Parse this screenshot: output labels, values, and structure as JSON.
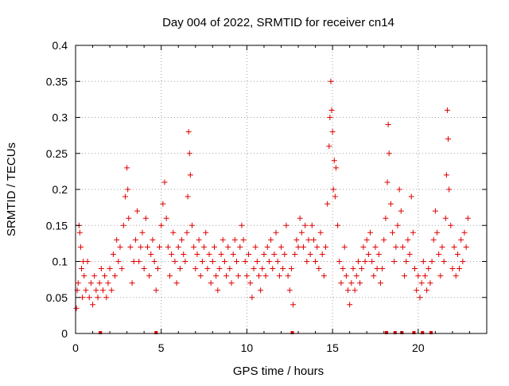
{
  "chart_data": {
    "type": "scatter",
    "title": "Day 004 of 2022, SRMTID for receiver cn14",
    "xlabel": "GPS time / hours",
    "ylabel": "SRMTID / TECUs",
    "xlim": [
      0,
      24
    ],
    "ylim": [
      0,
      0.4
    ],
    "xticks": [
      0,
      5,
      10,
      15,
      20
    ],
    "xtick_labels": [
      "0",
      "5",
      "10",
      "15",
      "20"
    ],
    "yticks": [
      0,
      0.05,
      0.1,
      0.15,
      0.2,
      0.25,
      0.3,
      0.35,
      0.4
    ],
    "ytick_labels": [
      "0",
      "0.05",
      "0.1",
      "0.15",
      "0.2",
      "0.25",
      "0.3",
      "0.35",
      "0.4"
    ],
    "grid": true,
    "marker": "plus",
    "color": "#e00000",
    "series": [
      {
        "name": "SRMTID",
        "points": [
          [
            0.05,
            0.035
          ],
          [
            0.1,
            0.06
          ],
          [
            0.15,
            0.07
          ],
          [
            0.2,
            0.15
          ],
          [
            0.25,
            0.14
          ],
          [
            0.3,
            0.12
          ],
          [
            0.35,
            0.09
          ],
          [
            0.4,
            0.05
          ],
          [
            0.45,
            0.1
          ],
          [
            0.5,
            0.08
          ],
          [
            0.6,
            0.06
          ],
          [
            0.7,
            0.1
          ],
          [
            0.8,
            0.05
          ],
          [
            0.9,
            0.07
          ],
          [
            1.0,
            0.04
          ],
          [
            1.1,
            0.08
          ],
          [
            1.2,
            0.06
          ],
          [
            1.3,
            0.05
          ],
          [
            1.4,
            0.07
          ],
          [
            1.5,
            0.09
          ],
          [
            1.6,
            0.06
          ],
          [
            1.7,
            0.08
          ],
          [
            1.8,
            0.05
          ],
          [
            1.9,
            0.07
          ],
          [
            2.0,
            0.09
          ],
          [
            2.1,
            0.06
          ],
          [
            2.2,
            0.11
          ],
          [
            2.3,
            0.08
          ],
          [
            2.4,
            0.13
          ],
          [
            2.5,
            0.1
          ],
          [
            2.6,
            0.12
          ],
          [
            2.7,
            0.09
          ],
          [
            2.8,
            0.15
          ],
          [
            2.9,
            0.19
          ],
          [
            3.0,
            0.23
          ],
          [
            3.05,
            0.2
          ],
          [
            3.1,
            0.16
          ],
          [
            3.2,
            0.12
          ],
          [
            3.3,
            0.07
          ],
          [
            3.4,
            0.1
          ],
          [
            3.5,
            0.13
          ],
          [
            3.6,
            0.17
          ],
          [
            3.7,
            0.1
          ],
          [
            3.8,
            0.12
          ],
          [
            3.9,
            0.14
          ],
          [
            4.0,
            0.09
          ],
          [
            4.1,
            0.16
          ],
          [
            4.2,
            0.12
          ],
          [
            4.3,
            0.08
          ],
          [
            4.4,
            0.11
          ],
          [
            4.5,
            0.13
          ],
          [
            4.6,
            0.1
          ],
          [
            4.7,
            0.06
          ],
          [
            4.8,
            0.09
          ],
          [
            4.9,
            0.12
          ],
          [
            5.0,
            0.15
          ],
          [
            5.1,
            0.18
          ],
          [
            5.2,
            0.21
          ],
          [
            5.3,
            0.16
          ],
          [
            5.4,
            0.12
          ],
          [
            5.5,
            0.08
          ],
          [
            5.6,
            0.11
          ],
          [
            5.7,
            0.14
          ],
          [
            5.8,
            0.1
          ],
          [
            5.9,
            0.07
          ],
          [
            6.0,
            0.12
          ],
          [
            6.1,
            0.09
          ],
          [
            6.2,
            0.13
          ],
          [
            6.3,
            0.11
          ],
          [
            6.4,
            0.1
          ],
          [
            6.5,
            0.14
          ],
          [
            6.55,
            0.19
          ],
          [
            6.6,
            0.28
          ],
          [
            6.65,
            0.25
          ],
          [
            6.7,
            0.22
          ],
          [
            6.8,
            0.15
          ],
          [
            6.9,
            0.12
          ],
          [
            7.0,
            0.09
          ],
          [
            7.1,
            0.11
          ],
          [
            7.2,
            0.13
          ],
          [
            7.3,
            0.08
          ],
          [
            7.4,
            0.1
          ],
          [
            7.5,
            0.12
          ],
          [
            7.6,
            0.14
          ],
          [
            7.7,
            0.09
          ],
          [
            7.8,
            0.11
          ],
          [
            7.9,
            0.07
          ],
          [
            8.0,
            0.1
          ],
          [
            8.1,
            0.12
          ],
          [
            8.2,
            0.08
          ],
          [
            8.3,
            0.06
          ],
          [
            8.4,
            0.09
          ],
          [
            8.5,
            0.11
          ],
          [
            8.6,
            0.13
          ],
          [
            8.7,
            0.1
          ],
          [
            8.8,
            0.08
          ],
          [
            8.9,
            0.12
          ],
          [
            9.0,
            0.09
          ],
          [
            9.1,
            0.07
          ],
          [
            9.2,
            0.11
          ],
          [
            9.3,
            0.13
          ],
          [
            9.4,
            0.1
          ],
          [
            9.5,
            0.08
          ],
          [
            9.6,
            0.12
          ],
          [
            9.7,
            0.15
          ],
          [
            9.8,
            0.13
          ],
          [
            9.9,
            0.1
          ],
          [
            10.0,
            0.08
          ],
          [
            10.1,
            0.11
          ],
          [
            10.2,
            0.07
          ],
          [
            10.3,
            0.05
          ],
          [
            10.4,
            0.09
          ],
          [
            10.5,
            0.12
          ],
          [
            10.6,
            0.1
          ],
          [
            10.7,
            0.08
          ],
          [
            10.8,
            0.06
          ],
          [
            10.9,
            0.09
          ],
          [
            11.0,
            0.11
          ],
          [
            11.1,
            0.08
          ],
          [
            11.2,
            0.12
          ],
          [
            11.3,
            0.1
          ],
          [
            11.4,
            0.13
          ],
          [
            11.5,
            0.09
          ],
          [
            11.6,
            0.11
          ],
          [
            11.7,
            0.14
          ],
          [
            11.8,
            0.1
          ],
          [
            11.9,
            0.08
          ],
          [
            12.0,
            0.12
          ],
          [
            12.1,
            0.09
          ],
          [
            12.2,
            0.11
          ],
          [
            12.3,
            0.15
          ],
          [
            12.4,
            0.08
          ],
          [
            12.5,
            0.06
          ],
          [
            12.6,
            0.09
          ],
          [
            12.7,
            0.04
          ],
          [
            12.8,
            0.11
          ],
          [
            12.9,
            0.13
          ],
          [
            13.0,
            0.12
          ],
          [
            13.1,
            0.16
          ],
          [
            13.2,
            0.14
          ],
          [
            13.3,
            0.12
          ],
          [
            13.4,
            0.15
          ],
          [
            13.5,
            0.1
          ],
          [
            13.6,
            0.13
          ],
          [
            13.7,
            0.11
          ],
          [
            13.8,
            0.15
          ],
          [
            13.9,
            0.13
          ],
          [
            14.0,
            0.1
          ],
          [
            14.1,
            0.12
          ],
          [
            14.2,
            0.09
          ],
          [
            14.3,
            0.14
          ],
          [
            14.4,
            0.11
          ],
          [
            14.5,
            0.08
          ],
          [
            14.6,
            0.12
          ],
          [
            14.7,
            0.18
          ],
          [
            14.8,
            0.26
          ],
          [
            14.85,
            0.3
          ],
          [
            14.9,
            0.35
          ],
          [
            14.95,
            0.31
          ],
          [
            15.0,
            0.28
          ],
          [
            15.05,
            0.2
          ],
          [
            15.1,
            0.24
          ],
          [
            15.15,
            0.19
          ],
          [
            15.2,
            0.23
          ],
          [
            15.3,
            0.15
          ],
          [
            15.4,
            0.1
          ],
          [
            15.5,
            0.07
          ],
          [
            15.6,
            0.09
          ],
          [
            15.7,
            0.12
          ],
          [
            15.8,
            0.08
          ],
          [
            15.9,
            0.06
          ],
          [
            16.0,
            0.04
          ],
          [
            16.1,
            0.07
          ],
          [
            16.2,
            0.09
          ],
          [
            16.3,
            0.06
          ],
          [
            16.4,
            0.08
          ],
          [
            16.5,
            0.1
          ],
          [
            16.6,
            0.07
          ],
          [
            16.7,
            0.09
          ],
          [
            16.8,
            0.12
          ],
          [
            16.9,
            0.1
          ],
          [
            17.0,
            0.13
          ],
          [
            17.1,
            0.11
          ],
          [
            17.2,
            0.14
          ],
          [
            17.3,
            0.1
          ],
          [
            17.4,
            0.08
          ],
          [
            17.5,
            0.12
          ],
          [
            17.6,
            0.09
          ],
          [
            17.7,
            0.11
          ],
          [
            17.8,
            0.07
          ],
          [
            17.9,
            0.09
          ],
          [
            18.0,
            0.13
          ],
          [
            18.1,
            0.16
          ],
          [
            18.2,
            0.21
          ],
          [
            18.25,
            0.29
          ],
          [
            18.3,
            0.25
          ],
          [
            18.4,
            0.18
          ],
          [
            18.5,
            0.14
          ],
          [
            18.6,
            0.1
          ],
          [
            18.7,
            0.12
          ],
          [
            18.8,
            0.15
          ],
          [
            18.9,
            0.2
          ],
          [
            19.0,
            0.17
          ],
          [
            19.1,
            0.12
          ],
          [
            19.2,
            0.08
          ],
          [
            19.3,
            0.1
          ],
          [
            19.4,
            0.13
          ],
          [
            19.5,
            0.11
          ],
          [
            19.6,
            0.19
          ],
          [
            19.7,
            0.14
          ],
          [
            19.8,
            0.09
          ],
          [
            19.9,
            0.06
          ],
          [
            20.0,
            0.08
          ],
          [
            20.1,
            0.05
          ],
          [
            20.2,
            0.07
          ],
          [
            20.3,
            0.1
          ],
          [
            20.4,
            0.08
          ],
          [
            20.5,
            0.06
          ],
          [
            20.6,
            0.09
          ],
          [
            20.7,
            0.07
          ],
          [
            20.8,
            0.1
          ],
          [
            20.9,
            0.13
          ],
          [
            21.0,
            0.17
          ],
          [
            21.1,
            0.14
          ],
          [
            21.2,
            0.11
          ],
          [
            21.3,
            0.08
          ],
          [
            21.4,
            0.12
          ],
          [
            21.5,
            0.1
          ],
          [
            21.6,
            0.16
          ],
          [
            21.65,
            0.22
          ],
          [
            21.7,
            0.31
          ],
          [
            21.75,
            0.27
          ],
          [
            21.8,
            0.2
          ],
          [
            21.9,
            0.15
          ],
          [
            22.0,
            0.09
          ],
          [
            22.1,
            0.12
          ],
          [
            22.2,
            0.08
          ],
          [
            22.3,
            0.11
          ],
          [
            22.4,
            0.09
          ],
          [
            22.5,
            0.13
          ],
          [
            22.6,
            0.1
          ],
          [
            22.7,
            0.14
          ],
          [
            22.8,
            0.12
          ],
          [
            22.9,
            0.16
          ]
        ]
      }
    ],
    "flag_markers_x": [
      1.45,
      4.7,
      12.65,
      18.15,
      18.65,
      19.05,
      19.75,
      20.25,
      20.75
    ]
  }
}
